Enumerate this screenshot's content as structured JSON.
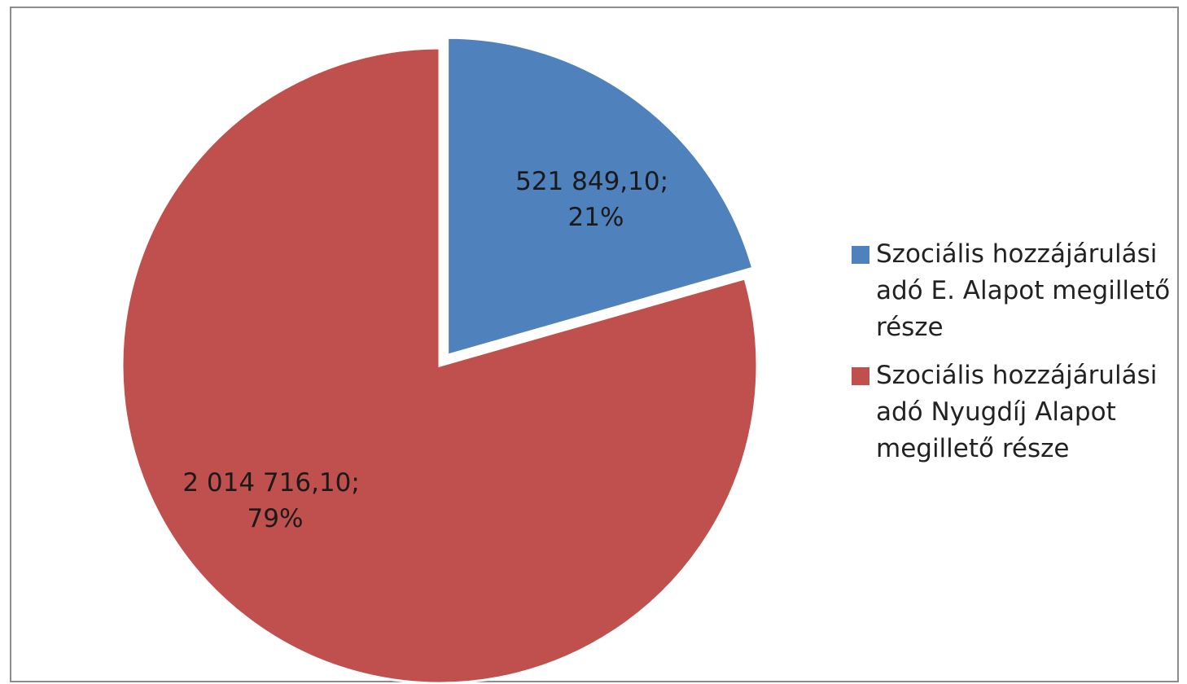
{
  "chart_data": {
    "type": "pie",
    "title": "",
    "series": [
      {
        "name": "",
        "values": [
          521849.1,
          2014716.1
        ]
      }
    ],
    "categories": [
      "Szociális hozzájárulási adó E. Alapot megillető része",
      "Szociális hozzájárulási adó Nyugdíj Alapot megillető része"
    ],
    "slices": [
      {
        "legend": "Szociális hozzájárulási adó E. Alapot megillető része",
        "value": 521849.1,
        "value_label": "521 849,10;",
        "percent": 21,
        "percent_label": "21%",
        "color": "#4f81bd",
        "exploded": true
      },
      {
        "legend": "Szociális hozzájárulási adó Nyugdíj Alapot megillető része",
        "value": 2014716.1,
        "value_label": "2 014 716,10;",
        "percent": 79,
        "percent_label": "79%",
        "color": "#c0504d",
        "exploded": false
      }
    ],
    "start_angle": "12 o'clock, clockwise",
    "legend_position": "right"
  }
}
